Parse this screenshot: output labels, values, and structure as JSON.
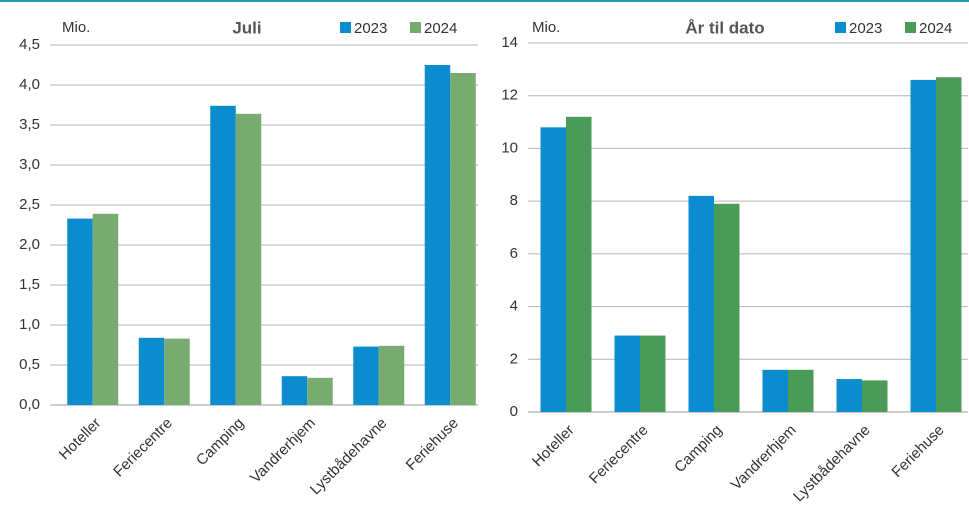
{
  "chart_data": [
    {
      "type": "bar",
      "title": "Juli",
      "y_unit": "Mio.",
      "categories": [
        "Hoteller",
        "Feriecentre",
        "Camping",
        "Vandrerhjem",
        "Lystbådehavne",
        "Feriehuse"
      ],
      "series": [
        {
          "name": "2023",
          "color": "#0a8ccf",
          "values": [
            2.33,
            0.84,
            3.74,
            0.36,
            0.73,
            4.25
          ]
        },
        {
          "name": "2024",
          "color": "#78ab6f",
          "values": [
            2.39,
            0.83,
            3.64,
            0.34,
            0.74,
            4.15
          ]
        }
      ],
      "ylim": [
        0,
        4.5
      ],
      "yticks": [
        {
          "value": 0,
          "label": "0,0"
        },
        {
          "value": 0.5,
          "label": "0,5"
        },
        {
          "value": 1,
          "label": "1,0"
        },
        {
          "value": 1.5,
          "label": "1,5"
        },
        {
          "value": 2,
          "label": "2,0"
        },
        {
          "value": 2.5,
          "label": "2,5"
        },
        {
          "value": 3,
          "label": "3,0"
        },
        {
          "value": 3.5,
          "label": "3,5"
        },
        {
          "value": 4,
          "label": "4,0"
        },
        {
          "value": 4.5,
          "label": "4,5"
        }
      ],
      "grid": true
    },
    {
      "type": "bar",
      "title": "År til dato",
      "y_unit": "Mio.",
      "categories": [
        "Hoteller",
        "Feriecentre",
        "Camping",
        "Vandrerhjem",
        "Lystbådehavne",
        "Feriehuse"
      ],
      "series": [
        {
          "name": "2023",
          "color": "#0a8ccf",
          "values": [
            10.8,
            2.9,
            8.2,
            1.6,
            1.25,
            12.6
          ]
        },
        {
          "name": "2024",
          "color": "#4a9b57",
          "values": [
            11.2,
            2.9,
            7.9,
            1.6,
            1.2,
            12.7
          ]
        }
      ],
      "ylim": [
        0,
        14
      ],
      "yticks": [
        0,
        2,
        4,
        6,
        8,
        10,
        12,
        14
      ],
      "grid": true
    }
  ]
}
